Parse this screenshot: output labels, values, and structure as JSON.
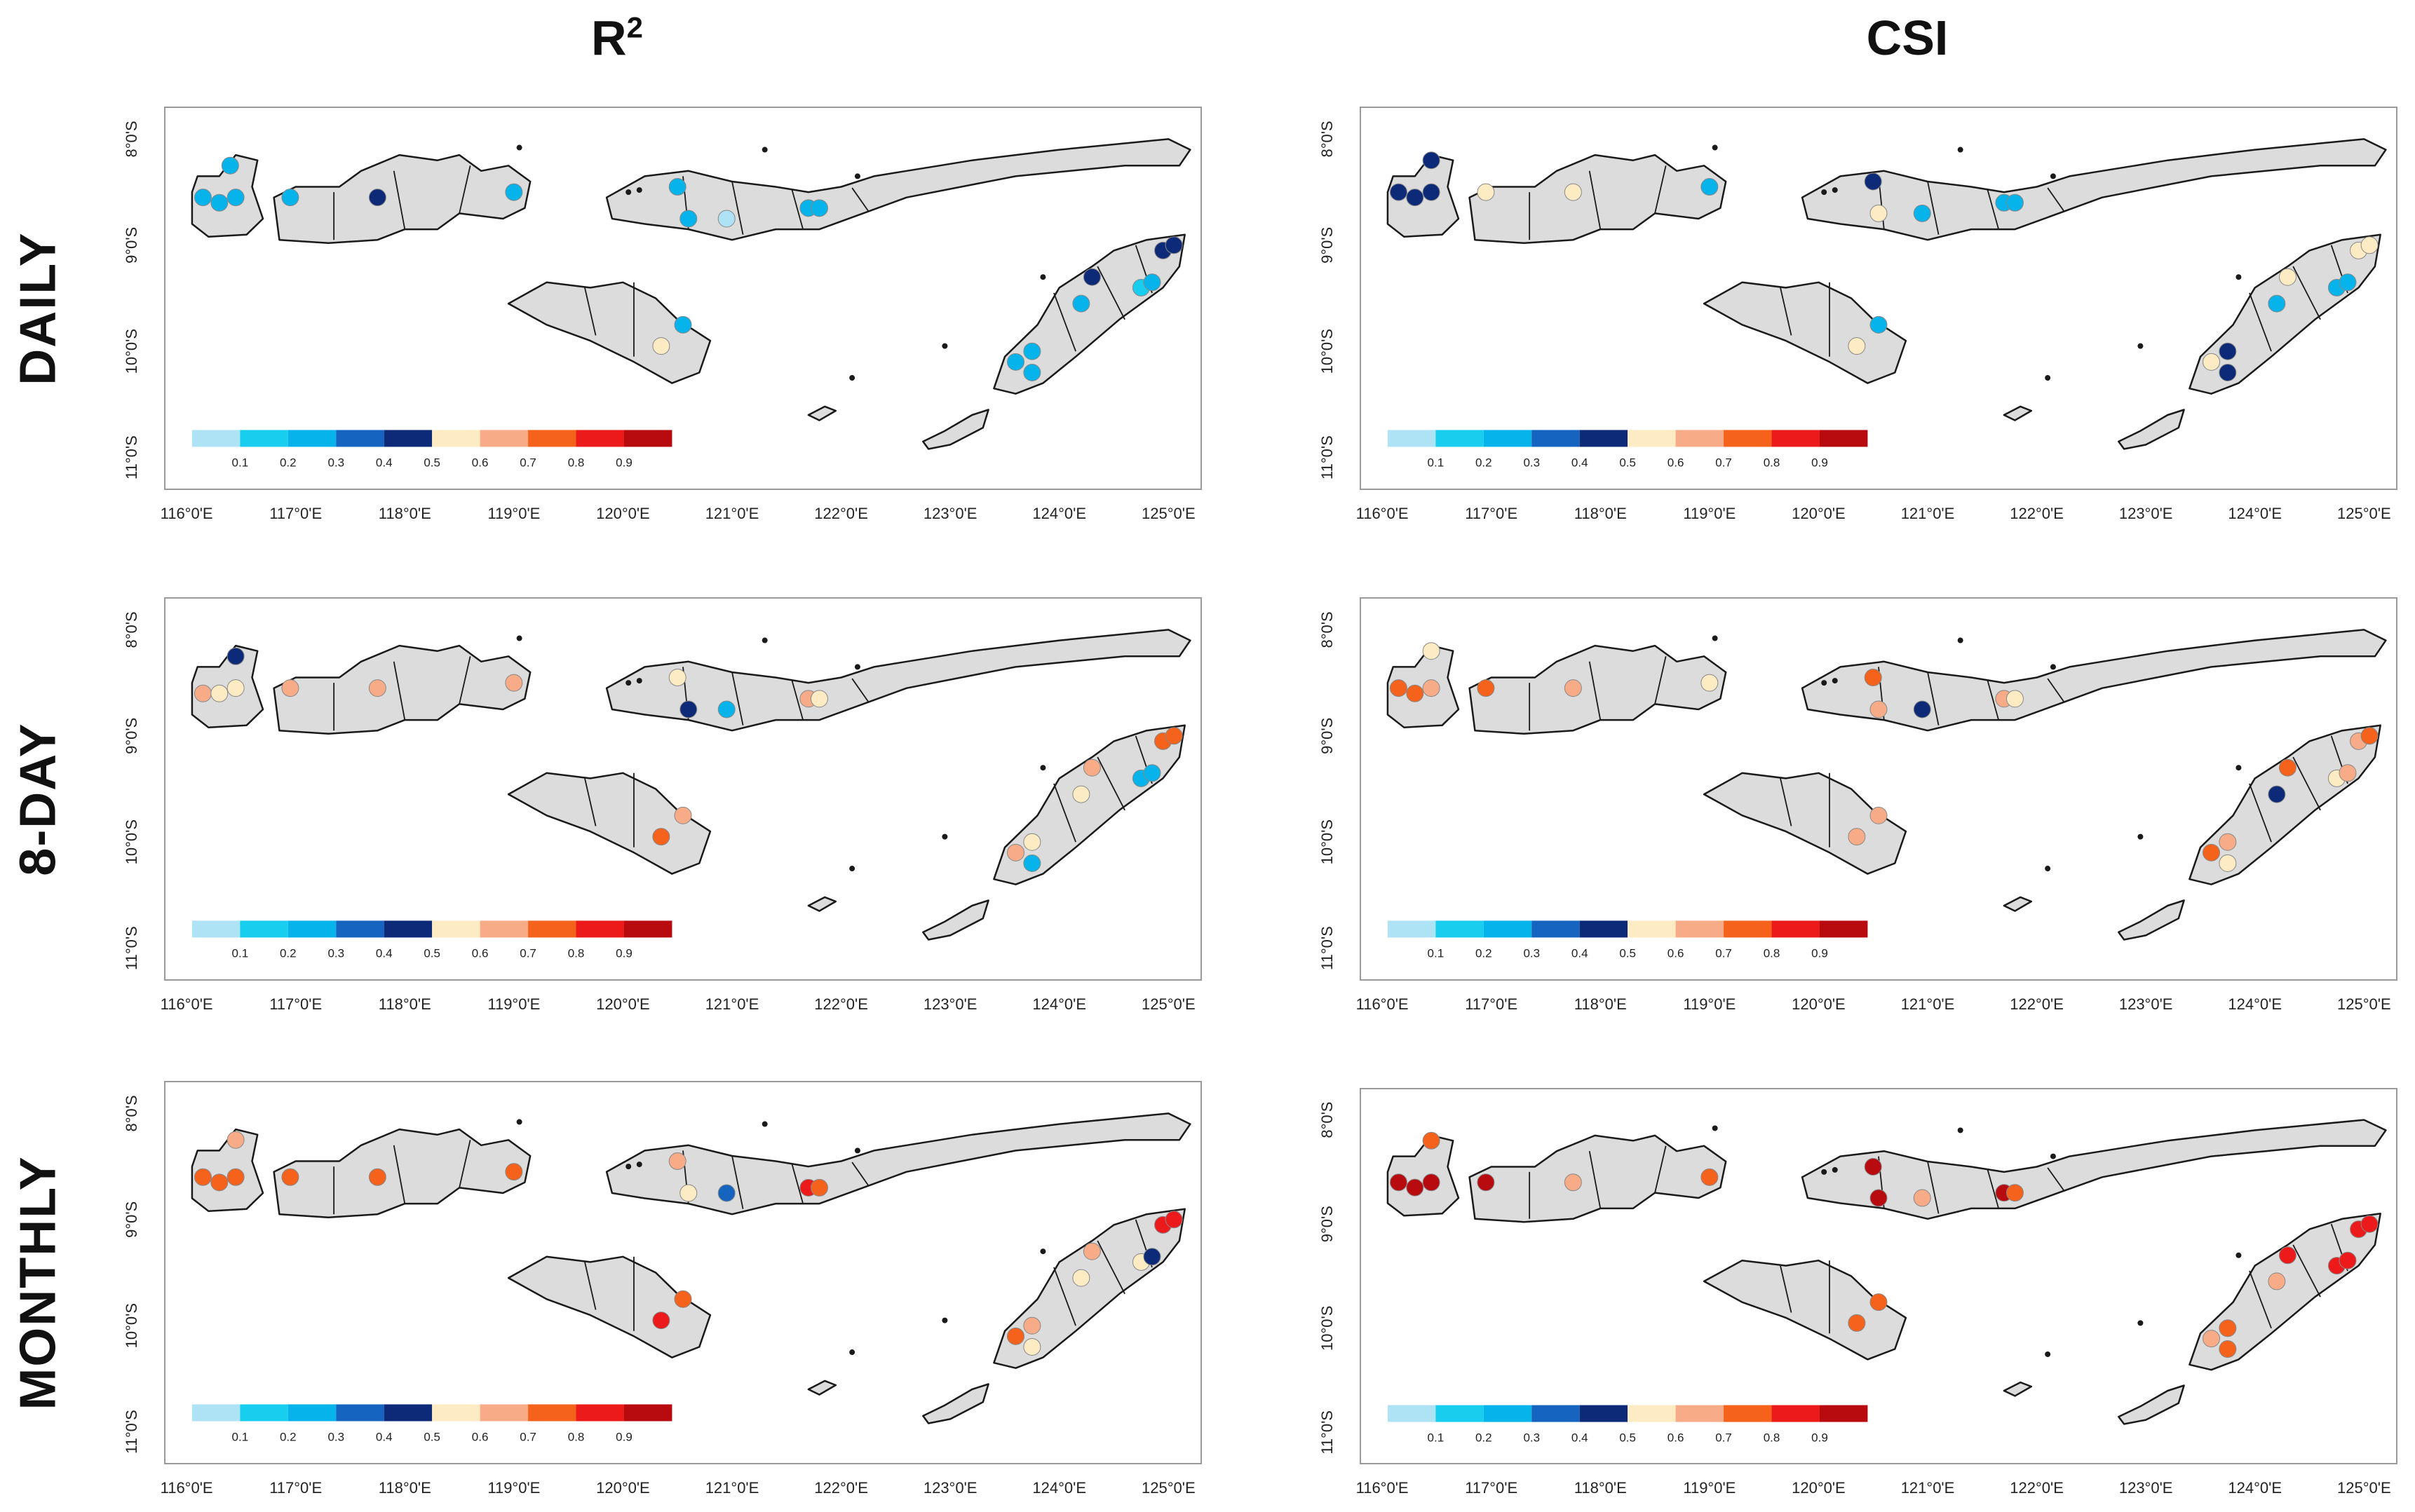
{
  "columns": [
    {
      "id": "r2",
      "title_base": "R",
      "title_sup": "2"
    },
    {
      "id": "csi",
      "title_base": "CSI",
      "title_sup": ""
    }
  ],
  "rows": [
    {
      "id": "daily",
      "label": "DAILY"
    },
    {
      "id": "eightday",
      "label": "8-DAY"
    },
    {
      "id": "monthly",
      "label": "MONTHLY"
    }
  ],
  "axes": {
    "lon_labels": [
      "116°0'E",
      "117°0'E",
      "118°0'E",
      "119°0'E",
      "120°0'E",
      "121°0'E",
      "122°0'E",
      "123°0'E",
      "124°0'E",
      "125°0'E"
    ],
    "lat_labels": [
      "8°0'S",
      "9°0'S",
      "10°0'S",
      "11°0'S"
    ],
    "lon_range": [
      115.8,
      125.3
    ],
    "lat_range": [
      -11.3,
      -7.7
    ]
  },
  "legend": {
    "tick_labels": [
      "0.1",
      "0.2",
      "0.3",
      "0.4",
      "0.5",
      "0.6",
      "0.7",
      "0.8",
      "0.9"
    ],
    "colors": [
      "#aee3f6",
      "#18cdee",
      "#06b3ea",
      "#1565c0",
      "#0d2a78",
      "#fdebc4",
      "#f7ab86",
      "#f4621c",
      "#ec1a1a",
      "#b80b10"
    ]
  },
  "chart_data": [
    {
      "type": "map",
      "metric": "R2",
      "period": "DAILY",
      "stations": [
        {
          "lon": 116.15,
          "lat": -8.55,
          "v": 0.2
        },
        {
          "lon": 116.3,
          "lat": -8.6,
          "v": 0.2
        },
        {
          "lon": 116.45,
          "lat": -8.55,
          "v": 0.2
        },
        {
          "lon": 116.4,
          "lat": -8.25,
          "v": 0.2
        },
        {
          "lon": 116.95,
          "lat": -8.55,
          "v": 0.2
        },
        {
          "lon": 117.75,
          "lat": -8.55,
          "v": 0.4
        },
        {
          "lon": 119.0,
          "lat": -8.5,
          "v": 0.2
        },
        {
          "lon": 120.5,
          "lat": -8.45,
          "v": 0.2
        },
        {
          "lon": 120.6,
          "lat": -8.75,
          "v": 0.2
        },
        {
          "lon": 120.95,
          "lat": -8.75,
          "v": 0.05
        },
        {
          "lon": 121.7,
          "lat": -8.65,
          "v": 0.2
        },
        {
          "lon": 121.8,
          "lat": -8.65,
          "v": 0.2
        },
        {
          "lon": 120.55,
          "lat": -9.75,
          "v": 0.2
        },
        {
          "lon": 120.35,
          "lat": -9.95,
          "v": 0.5
        },
        {
          "lon": 124.3,
          "lat": -9.3,
          "v": 0.4
        },
        {
          "lon": 124.2,
          "lat": -9.55,
          "v": 0.2
        },
        {
          "lon": 124.75,
          "lat": -9.4,
          "v": 0.1
        },
        {
          "lon": 124.85,
          "lat": -9.35,
          "v": 0.2
        },
        {
          "lon": 124.95,
          "lat": -9.05,
          "v": 0.4
        },
        {
          "lon": 125.05,
          "lat": -9.0,
          "v": 0.4
        },
        {
          "lon": 123.75,
          "lat": -10.0,
          "v": 0.2
        },
        {
          "lon": 123.6,
          "lat": -10.1,
          "v": 0.2
        },
        {
          "lon": 123.75,
          "lat": -10.2,
          "v": 0.2
        }
      ]
    },
    {
      "type": "map",
      "metric": "CSI",
      "period": "DAILY",
      "stations": [
        {
          "lon": 116.15,
          "lat": -8.5,
          "v": 0.4
        },
        {
          "lon": 116.3,
          "lat": -8.55,
          "v": 0.4
        },
        {
          "lon": 116.45,
          "lat": -8.5,
          "v": 0.4
        },
        {
          "lon": 116.45,
          "lat": -8.2,
          "v": 0.4
        },
        {
          "lon": 116.95,
          "lat": -8.5,
          "v": 0.5
        },
        {
          "lon": 117.75,
          "lat": -8.5,
          "v": 0.5
        },
        {
          "lon": 119.0,
          "lat": -8.45,
          "v": 0.2
        },
        {
          "lon": 120.5,
          "lat": -8.4,
          "v": 0.4
        },
        {
          "lon": 120.55,
          "lat": -8.7,
          "v": 0.5
        },
        {
          "lon": 120.95,
          "lat": -8.7,
          "v": 0.2
        },
        {
          "lon": 121.7,
          "lat": -8.6,
          "v": 0.2
        },
        {
          "lon": 121.8,
          "lat": -8.6,
          "v": 0.2
        },
        {
          "lon": 120.55,
          "lat": -9.75,
          "v": 0.2
        },
        {
          "lon": 120.35,
          "lat": -9.95,
          "v": 0.5
        },
        {
          "lon": 124.3,
          "lat": -9.3,
          "v": 0.5
        },
        {
          "lon": 124.2,
          "lat": -9.55,
          "v": 0.2
        },
        {
          "lon": 124.75,
          "lat": -9.4,
          "v": 0.2
        },
        {
          "lon": 124.85,
          "lat": -9.35,
          "v": 0.2
        },
        {
          "lon": 124.95,
          "lat": -9.05,
          "v": 0.5
        },
        {
          "lon": 125.05,
          "lat": -9.0,
          "v": 0.5
        },
        {
          "lon": 123.75,
          "lat": -10.0,
          "v": 0.4
        },
        {
          "lon": 123.6,
          "lat": -10.1,
          "v": 0.5
        },
        {
          "lon": 123.75,
          "lat": -10.2,
          "v": 0.4
        }
      ]
    },
    {
      "type": "map",
      "metric": "R2",
      "period": "8-DAY",
      "stations": [
        {
          "lon": 116.15,
          "lat": -8.6,
          "v": 0.65
        },
        {
          "lon": 116.3,
          "lat": -8.6,
          "v": 0.55
        },
        {
          "lon": 116.45,
          "lat": -8.55,
          "v": 0.55
        },
        {
          "lon": 116.45,
          "lat": -8.25,
          "v": 0.4
        },
        {
          "lon": 116.95,
          "lat": -8.55,
          "v": 0.65
        },
        {
          "lon": 117.75,
          "lat": -8.55,
          "v": 0.65
        },
        {
          "lon": 119.0,
          "lat": -8.5,
          "v": 0.65
        },
        {
          "lon": 120.5,
          "lat": -8.45,
          "v": 0.5
        },
        {
          "lon": 120.6,
          "lat": -8.75,
          "v": 0.4
        },
        {
          "lon": 120.95,
          "lat": -8.75,
          "v": 0.2
        },
        {
          "lon": 121.7,
          "lat": -8.65,
          "v": 0.65
        },
        {
          "lon": 121.8,
          "lat": -8.65,
          "v": 0.55
        },
        {
          "lon": 120.55,
          "lat": -9.75,
          "v": 0.65
        },
        {
          "lon": 120.35,
          "lat": -9.95,
          "v": 0.75
        },
        {
          "lon": 124.3,
          "lat": -9.3,
          "v": 0.65
        },
        {
          "lon": 124.2,
          "lat": -9.55,
          "v": 0.5
        },
        {
          "lon": 124.75,
          "lat": -9.4,
          "v": 0.2
        },
        {
          "lon": 124.85,
          "lat": -9.35,
          "v": 0.2
        },
        {
          "lon": 124.95,
          "lat": -9.05,
          "v": 0.75
        },
        {
          "lon": 125.05,
          "lat": -9.0,
          "v": 0.75
        },
        {
          "lon": 123.75,
          "lat": -10.0,
          "v": 0.55
        },
        {
          "lon": 123.6,
          "lat": -10.1,
          "v": 0.65
        },
        {
          "lon": 123.75,
          "lat": -10.2,
          "v": 0.2
        }
      ]
    },
    {
      "type": "map",
      "metric": "CSI",
      "period": "8-DAY",
      "stations": [
        {
          "lon": 116.15,
          "lat": -8.55,
          "v": 0.75
        },
        {
          "lon": 116.3,
          "lat": -8.6,
          "v": 0.75
        },
        {
          "lon": 116.45,
          "lat": -8.55,
          "v": 0.65
        },
        {
          "lon": 116.45,
          "lat": -8.2,
          "v": 0.55
        },
        {
          "lon": 116.95,
          "lat": -8.55,
          "v": 0.75
        },
        {
          "lon": 117.75,
          "lat": -8.55,
          "v": 0.65
        },
        {
          "lon": 119.0,
          "lat": -8.5,
          "v": 0.55
        },
        {
          "lon": 120.5,
          "lat": -8.45,
          "v": 0.75
        },
        {
          "lon": 120.55,
          "lat": -8.75,
          "v": 0.65
        },
        {
          "lon": 120.95,
          "lat": -8.75,
          "v": 0.4
        },
        {
          "lon": 121.7,
          "lat": -8.65,
          "v": 0.65
        },
        {
          "lon": 121.8,
          "lat": -8.65,
          "v": 0.55
        },
        {
          "lon": 120.55,
          "lat": -9.75,
          "v": 0.65
        },
        {
          "lon": 120.35,
          "lat": -9.95,
          "v": 0.65
        },
        {
          "lon": 124.3,
          "lat": -9.3,
          "v": 0.75
        },
        {
          "lon": 124.2,
          "lat": -9.55,
          "v": 0.4
        },
        {
          "lon": 124.75,
          "lat": -9.4,
          "v": 0.55
        },
        {
          "lon": 124.85,
          "lat": -9.35,
          "v": 0.65
        },
        {
          "lon": 124.95,
          "lat": -9.05,
          "v": 0.65
        },
        {
          "lon": 125.05,
          "lat": -9.0,
          "v": 0.75
        },
        {
          "lon": 123.75,
          "lat": -10.0,
          "v": 0.65
        },
        {
          "lon": 123.6,
          "lat": -10.1,
          "v": 0.75
        },
        {
          "lon": 123.75,
          "lat": -10.2,
          "v": 0.55
        }
      ]
    },
    {
      "type": "map",
      "metric": "R2",
      "period": "MONTHLY",
      "stations": [
        {
          "lon": 116.15,
          "lat": -8.6,
          "v": 0.75
        },
        {
          "lon": 116.3,
          "lat": -8.65,
          "v": 0.75
        },
        {
          "lon": 116.45,
          "lat": -8.6,
          "v": 0.75
        },
        {
          "lon": 116.45,
          "lat": -8.25,
          "v": 0.65
        },
        {
          "lon": 116.95,
          "lat": -8.6,
          "v": 0.75
        },
        {
          "lon": 117.75,
          "lat": -8.6,
          "v": 0.75
        },
        {
          "lon": 119.0,
          "lat": -8.55,
          "v": 0.75
        },
        {
          "lon": 120.5,
          "lat": -8.45,
          "v": 0.65
        },
        {
          "lon": 120.6,
          "lat": -8.75,
          "v": 0.55
        },
        {
          "lon": 120.95,
          "lat": -8.75,
          "v": 0.35
        },
        {
          "lon": 121.7,
          "lat": -8.7,
          "v": 0.85
        },
        {
          "lon": 121.8,
          "lat": -8.7,
          "v": 0.75
        },
        {
          "lon": 120.55,
          "lat": -9.75,
          "v": 0.75
        },
        {
          "lon": 120.35,
          "lat": -9.95,
          "v": 0.85
        },
        {
          "lon": 124.3,
          "lat": -9.3,
          "v": 0.65
        },
        {
          "lon": 124.2,
          "lat": -9.55,
          "v": 0.5
        },
        {
          "lon": 124.75,
          "lat": -9.4,
          "v": 0.55
        },
        {
          "lon": 124.85,
          "lat": -9.35,
          "v": 0.4
        },
        {
          "lon": 124.95,
          "lat": -9.05,
          "v": 0.85
        },
        {
          "lon": 125.05,
          "lat": -9.0,
          "v": 0.85
        },
        {
          "lon": 123.75,
          "lat": -10.0,
          "v": 0.65
        },
        {
          "lon": 123.6,
          "lat": -10.1,
          "v": 0.75
        },
        {
          "lon": 123.75,
          "lat": -10.2,
          "v": 0.55
        }
      ]
    },
    {
      "type": "map",
      "metric": "CSI",
      "period": "MONTHLY",
      "stations": [
        {
          "lon": 116.15,
          "lat": -8.6,
          "v": 0.95
        },
        {
          "lon": 116.3,
          "lat": -8.65,
          "v": 0.95
        },
        {
          "lon": 116.45,
          "lat": -8.6,
          "v": 0.95
        },
        {
          "lon": 116.45,
          "lat": -8.2,
          "v": 0.75
        },
        {
          "lon": 116.95,
          "lat": -8.6,
          "v": 0.95
        },
        {
          "lon": 117.75,
          "lat": -8.6,
          "v": 0.65
        },
        {
          "lon": 119.0,
          "lat": -8.55,
          "v": 0.75
        },
        {
          "lon": 120.5,
          "lat": -8.45,
          "v": 0.95
        },
        {
          "lon": 120.55,
          "lat": -8.75,
          "v": 0.95
        },
        {
          "lon": 120.95,
          "lat": -8.75,
          "v": 0.65
        },
        {
          "lon": 121.7,
          "lat": -8.7,
          "v": 0.95
        },
        {
          "lon": 121.8,
          "lat": -8.7,
          "v": 0.75
        },
        {
          "lon": 120.55,
          "lat": -9.75,
          "v": 0.75
        },
        {
          "lon": 120.35,
          "lat": -9.95,
          "v": 0.75
        },
        {
          "lon": 124.3,
          "lat": -9.3,
          "v": 0.85
        },
        {
          "lon": 124.2,
          "lat": -9.55,
          "v": 0.65
        },
        {
          "lon": 124.75,
          "lat": -9.4,
          "v": 0.85
        },
        {
          "lon": 124.85,
          "lat": -9.35,
          "v": 0.85
        },
        {
          "lon": 124.95,
          "lat": -9.05,
          "v": 0.85
        },
        {
          "lon": 125.05,
          "lat": -9.0,
          "v": 0.85
        },
        {
          "lon": 123.75,
          "lat": -10.0,
          "v": 0.75
        },
        {
          "lon": 123.6,
          "lat": -10.1,
          "v": 0.65
        },
        {
          "lon": 123.75,
          "lat": -10.2,
          "v": 0.75
        }
      ]
    }
  ]
}
